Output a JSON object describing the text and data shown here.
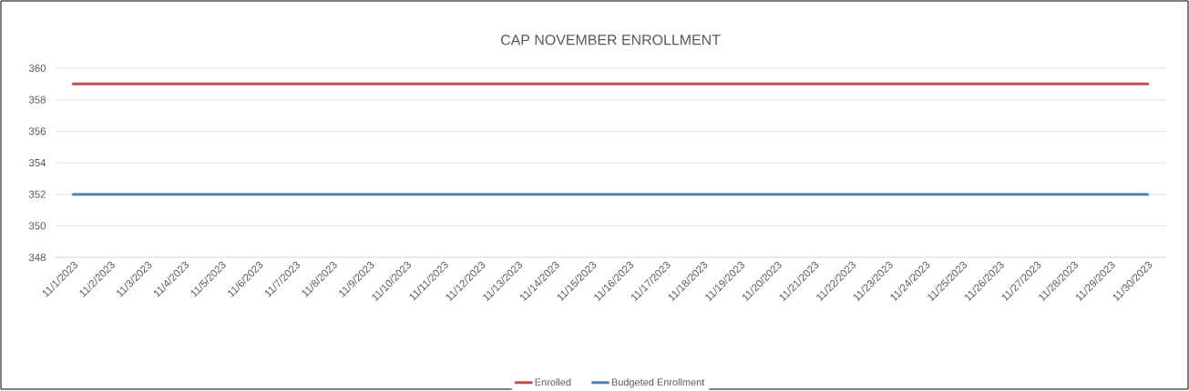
{
  "chart_data": {
    "type": "line",
    "title": "CAP NOVEMBER ENROLLMENT",
    "categories": [
      "11/1/2023",
      "11/2/2023",
      "11/3/2023",
      "11/4/2023",
      "11/5/2023",
      "11/6/2023",
      "11/7/2023",
      "11/8/2023",
      "11/9/2023",
      "11/10/2023",
      "11/11/2023",
      "11/12/2023",
      "11/13/2023",
      "11/14/2023",
      "11/15/2023",
      "11/16/2023",
      "11/17/2023",
      "11/18/2023",
      "11/19/2023",
      "11/20/2023",
      "11/21/2023",
      "11/22/2023",
      "11/23/2023",
      "11/24/2023",
      "11/25/2023",
      "11/26/2023",
      "11/27/2023",
      "11/28/2023",
      "11/29/2023",
      "11/30/2023"
    ],
    "series": [
      {
        "name": "Enrolled",
        "color": "#c0504d",
        "values": [
          359,
          359,
          359,
          359,
          359,
          359,
          359,
          359,
          359,
          359,
          359,
          359,
          359,
          359,
          359,
          359,
          359,
          359,
          359,
          359,
          359,
          359,
          359,
          359,
          359,
          359,
          359,
          359,
          359,
          359
        ]
      },
      {
        "name": "Budgeted Enrollment",
        "color": "#4f81bd",
        "values": [
          352,
          352,
          352,
          352,
          352,
          352,
          352,
          352,
          352,
          352,
          352,
          352,
          352,
          352,
          352,
          352,
          352,
          352,
          352,
          352,
          352,
          352,
          352,
          352,
          352,
          352,
          352,
          352,
          352,
          352
        ]
      }
    ],
    "ylim": [
      348,
      360
    ],
    "yticks": [
      348,
      350,
      352,
      354,
      356,
      358,
      360
    ],
    "grid": "y",
    "legend": "bottom",
    "marker": "none",
    "line_style": "solid"
  }
}
